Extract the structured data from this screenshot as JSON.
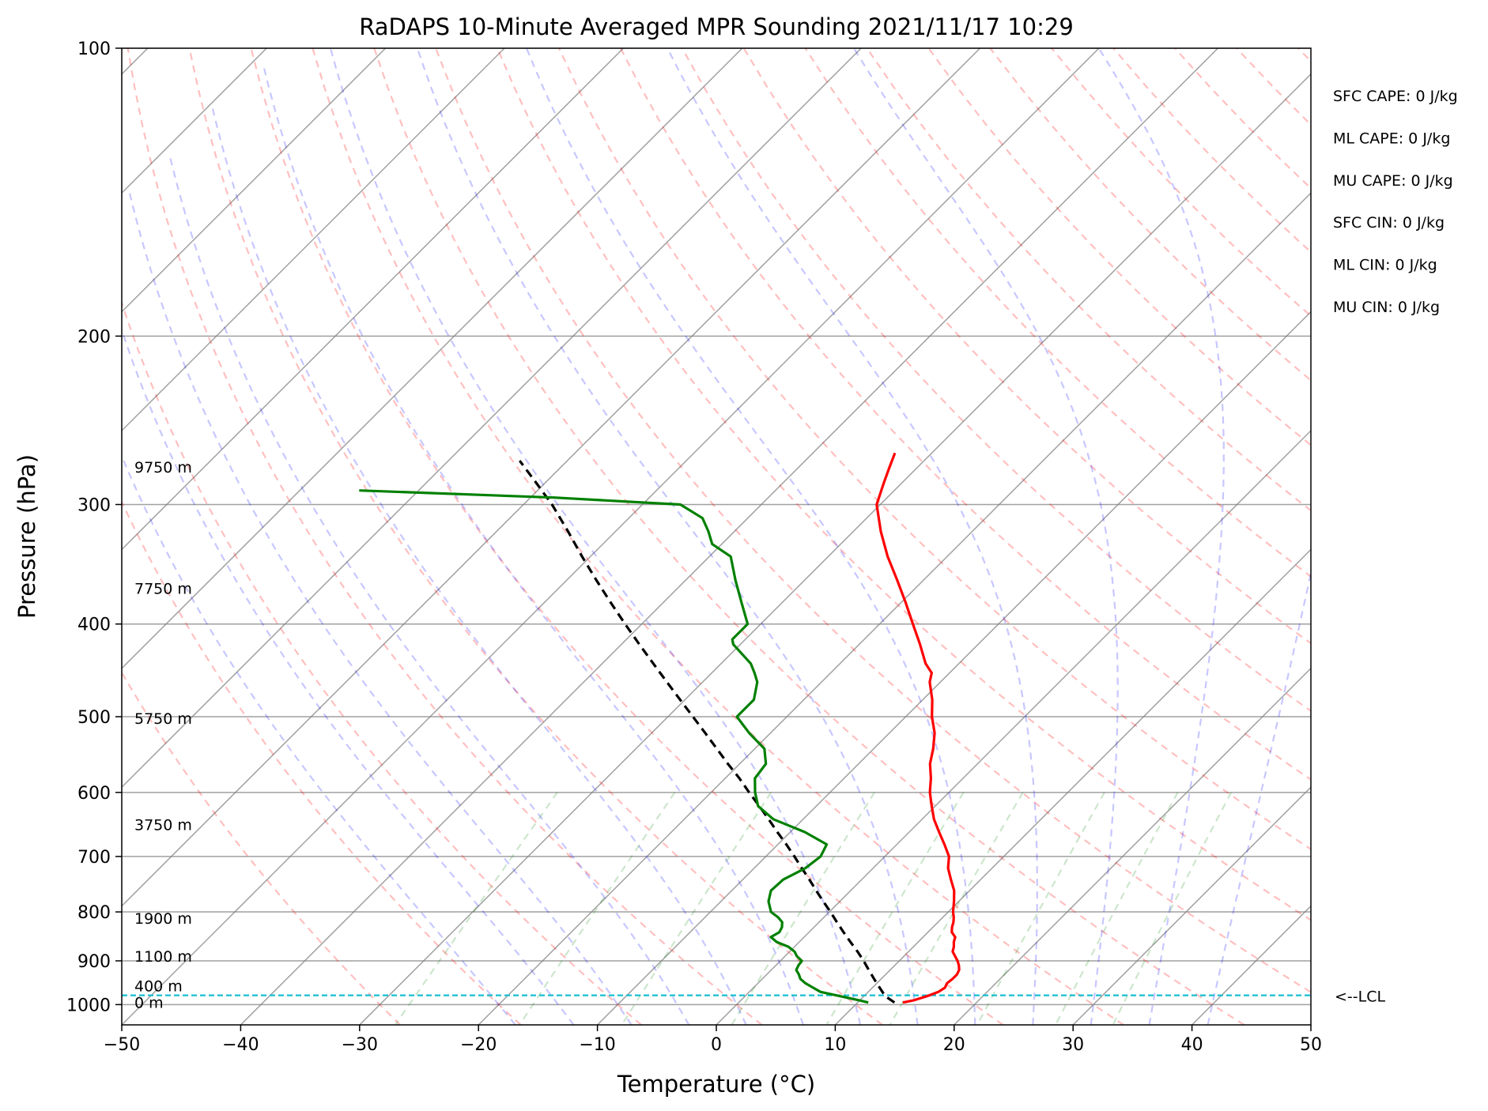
{
  "chart_data": {
    "type": "line",
    "title": "RaDAPS 10-Minute Averaged MPR Sounding 2021/11/17 10:29",
    "xlabel": "Temperature (°C)",
    "ylabel": "Pressure (hPa)",
    "xlim": [
      -50,
      50
    ],
    "ylim": [
      1050,
      100
    ],
    "y_scale": "log",
    "skew": "skew-T",
    "x_ticks": [
      "−50",
      "−40",
      "−30",
      "−20",
      "−10",
      "0",
      "10",
      "20",
      "30",
      "40",
      "50"
    ],
    "y_ticks": [
      "100",
      "200",
      "300",
      "400",
      "500",
      "600",
      "700",
      "800",
      "900",
      "1000"
    ],
    "grid": true,
    "colors": {
      "temperature": "#ff0000",
      "dewpoint": "#008000",
      "parcel": "#000000",
      "lcl": "#17becf",
      "dry_adiabats": "#ff0000",
      "moist_adiabats": "#0000ff",
      "mixing_ratio": "#008000",
      "isotherms": "#808080"
    },
    "temperature": {
      "pressure": [
        995,
        990,
        980,
        970,
        960,
        950,
        940,
        930,
        920,
        910,
        900,
        890,
        880,
        870,
        860,
        850,
        840,
        830,
        820,
        810,
        800,
        780,
        760,
        740,
        720,
        700,
        680,
        660,
        640,
        620,
        600,
        580,
        560,
        540,
        520,
        500,
        480,
        460,
        450,
        440,
        420,
        400,
        380,
        360,
        340,
        320,
        300,
        285,
        275,
        265
      ],
      "temp": [
        13.8,
        14.5,
        15.3,
        15.9,
        16.1,
        15.9,
        16.0,
        16.0,
        15.8,
        15.4,
        14.9,
        14.3,
        13.7,
        13.4,
        13.0,
        12.7,
        12.0,
        11.6,
        11.3,
        10.9,
        10.4,
        9.6,
        8.7,
        7.5,
        6.3,
        5.4,
        4.0,
        2.5,
        1.0,
        -0.3,
        -1.6,
        -2.7,
        -4.0,
        -5.0,
        -6.2,
        -7.8,
        -9.2,
        -10.9,
        -11.5,
        -12.8,
        -14.9,
        -17.2,
        -19.6,
        -22.2,
        -25.0,
        -27.7,
        -30.3,
        -31.5,
        -32.3,
        -33.1
      ]
    },
    "dewpoint": {
      "pressure": [
        995,
        990,
        980,
        970,
        960,
        950,
        940,
        930,
        920,
        910,
        900,
        890,
        880,
        870,
        860,
        850,
        840,
        830,
        820,
        810,
        800,
        780,
        760,
        740,
        720,
        700,
        680,
        660,
        640,
        620,
        600,
        580,
        560,
        540,
        520,
        500,
        480,
        460,
        450,
        440,
        420,
        415,
        400,
        380,
        360,
        340,
        330,
        320,
        310,
        300,
        295,
        290
      ],
      "dewpoint": [
        10.9,
        10.0,
        8.0,
        6.0,
        5.0,
        4.0,
        3.2,
        2.7,
        2.1,
        1.9,
        1.8,
        1.0,
        0.4,
        -0.5,
        -1.9,
        -2.8,
        -2.5,
        -2.7,
        -3.1,
        -3.9,
        -4.9,
        -6.0,
        -6.7,
        -6.6,
        -5.7,
        -5.4,
        -5.9,
        -8.8,
        -12.5,
        -14.9,
        -16.3,
        -17.5,
        -17.8,
        -19.2,
        -21.8,
        -24.2,
        -24.2,
        -25.4,
        -26.4,
        -27.5,
        -30.6,
        -31.1,
        -31.1,
        -33.4,
        -35.8,
        -38.2,
        -40.8,
        -42.2,
        -43.8,
        -46.8,
        -58,
        -75
      ]
    },
    "parcel": {
      "pressure": [
        995,
        980,
        960,
        940,
        920,
        900,
        880,
        860,
        840,
        820,
        800,
        780,
        760,
        740,
        720,
        700,
        680,
        660,
        640,
        620,
        600,
        580,
        560,
        540,
        520,
        500,
        480,
        460,
        440,
        420,
        400,
        380,
        360,
        340,
        320,
        300,
        285,
        270
      ],
      "temp": [
        13.1,
        11.8,
        10.6,
        9.4,
        8.2,
        7.0,
        5.7,
        4.3,
        2.9,
        1.5,
        0.1,
        -1.4,
        -2.9,
        -4.4,
        -6.0,
        -7.6,
        -9.3,
        -11.1,
        -12.9,
        -14.8,
        -16.8,
        -18.8,
        -21.0,
        -23.2,
        -25.5,
        -27.9,
        -30.4,
        -33.0,
        -35.7,
        -38.5,
        -41.4,
        -44.4,
        -47.5,
        -50.7,
        -54.0,
        -57.6,
        -60.7,
        -64.0
      ]
    },
    "lcl": {
      "pressure": 978,
      "label": "<--LCL"
    },
    "height_labels": [
      {
        "pressure": 995,
        "label": "0 m"
      },
      {
        "pressure": 956,
        "label": "400 m"
      },
      {
        "pressure": 890,
        "label": "1100 m"
      },
      {
        "pressure": 812,
        "label": "1900 m"
      },
      {
        "pressure": 648,
        "label": "3750 m"
      },
      {
        "pressure": 502,
        "label": "5750 m"
      },
      {
        "pressure": 367,
        "label": "7750 m"
      },
      {
        "pressure": 274,
        "label": "9750 m"
      }
    ],
    "indices": [
      {
        "label": "SFC CAPE: 0 J/kg"
      },
      {
        "label": "ML CAPE: 0 J/kg"
      },
      {
        "label": "MU CAPE: 0 J/kg"
      },
      {
        "label": "SFC CIN: 0 J/kg"
      },
      {
        "label": "ML CIN: 0 J/kg"
      },
      {
        "label": "MU CIN: 0 J/kg"
      }
    ]
  }
}
